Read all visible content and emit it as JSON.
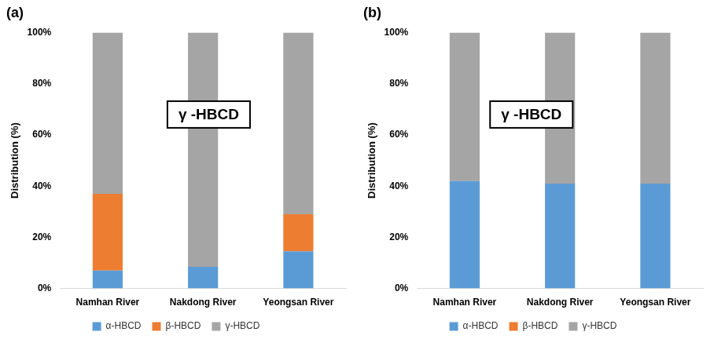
{
  "chart_data": [
    {
      "type": "bar",
      "title": "(a)",
      "y_label": "Distribution (%)",
      "annotation": "γ -HBCD",
      "categories": [
        "Namhan River",
        "Nakdong River",
        "Yeongsan River"
      ],
      "series": [
        {
          "name": "α-HBCD",
          "color": "#5b9bd5",
          "values": [
            7,
            8.5,
            14.5
          ]
        },
        {
          "name": "β-HBCD",
          "color": "#ed7d31",
          "values": [
            30,
            0,
            14.5
          ]
        },
        {
          "name": "γ-HBCD",
          "color": "#a5a5a5",
          "values": [
            63,
            91.5,
            71
          ]
        }
      ],
      "ylim": [
        0,
        100
      ],
      "yticks": [
        {
          "value": 0,
          "label": "0%"
        },
        {
          "value": 20,
          "label": "20%"
        },
        {
          "value": 40,
          "label": "40%"
        },
        {
          "value": 60,
          "label": "60%"
        },
        {
          "value": 80,
          "label": "80%"
        },
        {
          "value": 100,
          "label": "100%"
        }
      ],
      "stacked": true,
      "grid": false,
      "legend": "bottom"
    },
    {
      "type": "bar",
      "title": "(b)",
      "y_label": "Distribution (%)",
      "annotation": "γ -HBCD",
      "categories": [
        "Namhan River",
        "Nakdong River",
        "Yeongsan River"
      ],
      "series": [
        {
          "name": "α-HBCD",
          "color": "#5b9bd5",
          "values": [
            42,
            41,
            41
          ]
        },
        {
          "name": "β-HBCD",
          "color": "#ed7d31",
          "values": [
            0,
            0,
            0
          ]
        },
        {
          "name": "γ-HBCD",
          "color": "#a5a5a5",
          "values": [
            58,
            59,
            59
          ]
        }
      ],
      "ylim": [
        0,
        100
      ],
      "yticks": [
        {
          "value": 0,
          "label": "0%"
        },
        {
          "value": 20,
          "label": "20%"
        },
        {
          "value": 40,
          "label": "40%"
        },
        {
          "value": 60,
          "label": "60%"
        },
        {
          "value": 80,
          "label": "80%"
        },
        {
          "value": 100,
          "label": "100%"
        }
      ],
      "stacked": true,
      "grid": false,
      "legend": "bottom"
    }
  ]
}
